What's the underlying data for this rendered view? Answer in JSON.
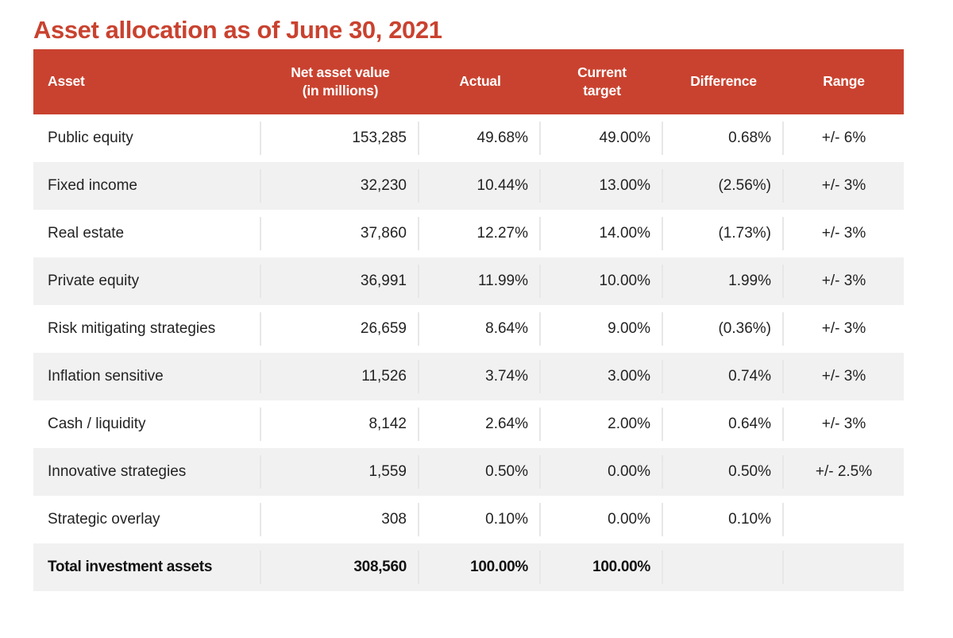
{
  "title": "Asset allocation as of June 30, 2021",
  "colors": {
    "accent_red": "#C9422F",
    "header_text": "#FFFFFF",
    "row_alt_bg": "#F1F1F1",
    "body_text": "#232323",
    "divider": "#E7E7E7"
  },
  "table": {
    "headers": {
      "asset": "Asset",
      "nav": "Net asset value\n(in millions)",
      "actual": "Actual",
      "current_target": "Current\ntarget",
      "difference": "Difference",
      "range": "Range"
    },
    "rows": [
      {
        "asset": "Public equity",
        "nav": "153,285",
        "actual": "49.68%",
        "current_target": "49.00%",
        "difference": "0.68%",
        "range": "+/- 6%"
      },
      {
        "asset": "Fixed income",
        "nav": "32,230",
        "actual": "10.44%",
        "current_target": "13.00%",
        "difference": "(2.56%)",
        "range": "+/- 3%"
      },
      {
        "asset": "Real estate",
        "nav": "37,860",
        "actual": "12.27%",
        "current_target": "14.00%",
        "difference": "(1.73%)",
        "range": "+/- 3%"
      },
      {
        "asset": "Private equity",
        "nav": "36,991",
        "actual": "11.99%",
        "current_target": "10.00%",
        "difference": "1.99%",
        "range": "+/- 3%"
      },
      {
        "asset": "Risk mitigating strategies",
        "nav": "26,659",
        "actual": "8.64%",
        "current_target": "9.00%",
        "difference": "(0.36%)",
        "range": "+/- 3%"
      },
      {
        "asset": "Inflation sensitive",
        "nav": "11,526",
        "actual": "3.74%",
        "current_target": "3.00%",
        "difference": "0.74%",
        "range": "+/- 3%"
      },
      {
        "asset": "Cash / liquidity",
        "nav": "8,142",
        "actual": "2.64%",
        "current_target": "2.00%",
        "difference": "0.64%",
        "range": "+/- 3%"
      },
      {
        "asset": "Innovative strategies",
        "nav": "1,559",
        "actual": "0.50%",
        "current_target": "0.00%",
        "difference": "0.50%",
        "range": "+/- 2.5%"
      },
      {
        "asset": "Strategic overlay",
        "nav": "308",
        "actual": "0.10%",
        "current_target": "0.00%",
        "difference": "0.10%",
        "range": ""
      }
    ],
    "total_row": {
      "asset": "Total investment assets",
      "nav": "308,560",
      "actual": "100.00%",
      "current_target": "100.00%",
      "difference": "",
      "range": ""
    }
  }
}
